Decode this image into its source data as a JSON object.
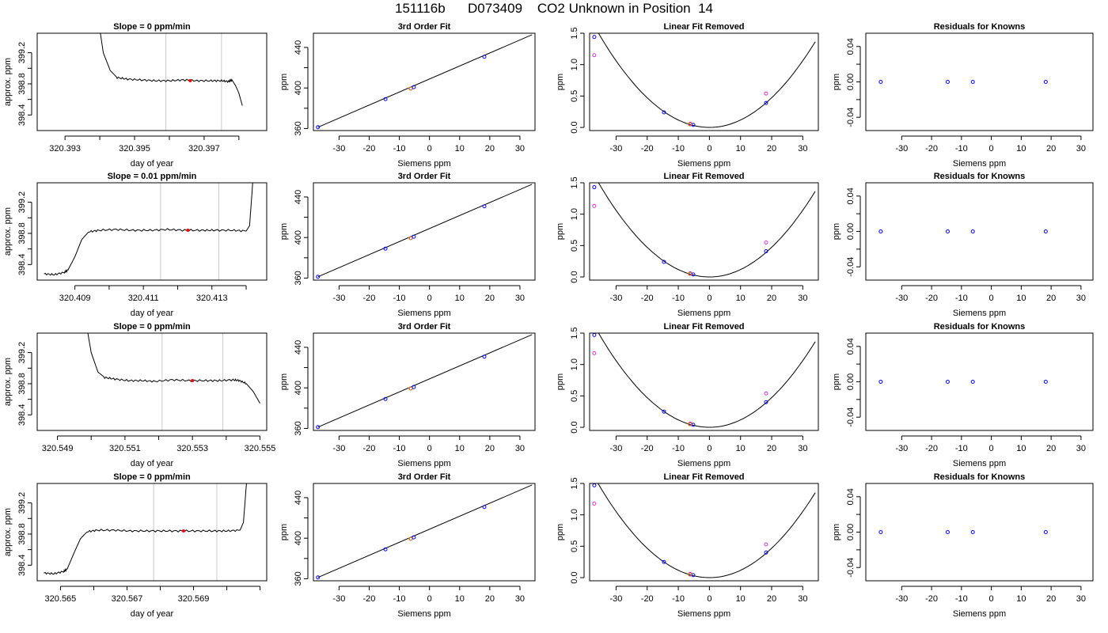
{
  "title": "151116b      D073409    CO2 Unknown in Position  14",
  "chart_data": [
    {
      "type": "line",
      "title": "Slope =  0  ppm/min",
      "xlabel": "day of year",
      "ylabel": "approx. ppm",
      "xlim": [
        320.3922,
        320.3988
      ],
      "ylim": [
        398.2,
        399.45
      ],
      "xticks": [
        320.393,
        320.394,
        320.395,
        320.396,
        320.397,
        320.398
      ],
      "xtick_labels": [
        "320.393",
        "",
        "320.395",
        "",
        "320.397",
        ""
      ],
      "yticks": [
        398.4,
        398.6,
        398.8,
        399.0,
        399.2
      ],
      "ytick_labels": [
        "398.4",
        "",
        "398.8",
        "",
        "399.2"
      ],
      "vlines": [
        320.3959,
        320.3975
      ],
      "x": [
        320.3939,
        320.3941,
        320.3943,
        320.3945,
        320.3948,
        320.3952,
        320.3956,
        320.396,
        320.3964,
        320.3968,
        320.3972,
        320.3975,
        320.3977,
        320.3978,
        320.3979,
        320.398,
        320.3981
      ],
      "y": [
        399.8,
        399.2,
        398.97,
        398.88,
        398.86,
        398.85,
        398.84,
        398.84,
        398.85,
        398.84,
        398.84,
        398.84,
        398.83,
        398.85,
        398.78,
        398.68,
        398.52
      ],
      "marker": {
        "x": 320.3966,
        "y": 398.84
      }
    },
    {
      "type": "scatter",
      "title": "3rd Order Fit",
      "xlabel": "Siemens ppm",
      "ylabel": "ppm",
      "xlim": [
        -38.5,
        35
      ],
      "ylim": [
        358,
        454
      ],
      "xticks": [
        -30,
        -20,
        -10,
        0,
        10,
        20,
        30
      ],
      "xtick_labels": [
        "-30",
        "-20",
        "-10",
        "0",
        "10",
        "20",
        "30"
      ],
      "yticks": [
        360,
        380,
        400,
        420,
        440
      ],
      "ytick_labels": [
        "360",
        "",
        "400",
        "",
        "440"
      ],
      "line": {
        "x": [
          -37,
          34
        ],
        "y": [
          361.3,
          452.5
        ]
      },
      "x": [
        -37,
        -14.6,
        -6.2,
        -5.2,
        18.2
      ],
      "y": [
        361.3,
        389,
        399.5,
        400.8,
        430.8
      ],
      "marker_points": [
        {
          "x": -6.3,
          "y": 399.4
        }
      ]
    },
    {
      "type": "scatter",
      "title": "Linear Fit Removed",
      "xlabel": "Siemens ppm",
      "ylabel": "ppm",
      "xlim": [
        -38.5,
        35
      ],
      "ylim": [
        -0.05,
        1.5
      ],
      "xticks": [
        -30,
        -20,
        -10,
        0,
        10,
        20,
        30
      ],
      "xtick_labels": [
        "-30",
        "-20",
        "-10",
        "0",
        "10",
        "20",
        "30"
      ],
      "yticks": [
        0,
        0.5,
        1.0,
        1.5
      ],
      "ytick_labels": [
        "0.0",
        "0.5",
        "1.0",
        "1.5"
      ],
      "curve": {
        "a": 0.00118,
        "h": 0,
        "k": 0,
        "xmin": -37,
        "xmax": 34
      },
      "x": [
        -37,
        -14.6,
        -6.2,
        -5.2,
        18.2
      ],
      "y": [
        1.44,
        0.24,
        0.05,
        0.04,
        0.39
      ],
      "magenta": {
        "x": [
          -37,
          -6.2,
          18.2
        ],
        "y": [
          1.15,
          0.06,
          0.54
        ]
      },
      "marker_points": [
        {
          "x": -6.3,
          "y": 0.05
        }
      ]
    },
    {
      "type": "scatter",
      "title": "Residuals for Knowns",
      "xlabel": "Siemens ppm",
      "ylabel": "ppm",
      "xlim": [
        -42,
        34
      ],
      "ylim": [
        -0.055,
        0.055
      ],
      "xticks": [
        -30,
        -20,
        -10,
        0,
        10,
        20,
        30
      ],
      "xtick_labels": [
        "-30",
        "-20",
        "-10",
        "0",
        "10",
        "20",
        "30"
      ],
      "yticks": [
        -0.04,
        -0.02,
        0,
        0.02,
        0.04
      ],
      "ytick_labels": [
        "-0.04",
        "",
        "0.00",
        "",
        "0.04"
      ],
      "x": [
        -37,
        -14.6,
        -6.2,
        18.2
      ],
      "y": [
        0,
        0,
        0,
        0
      ]
    },
    {
      "type": "line",
      "title": "Slope =  0.01  ppm/min",
      "xlabel": "day of year",
      "ylabel": "approx. ppm",
      "xlim": [
        320.4079,
        320.4146
      ],
      "ylim": [
        398.2,
        399.45
      ],
      "xticks": [
        320.409,
        320.41,
        320.411,
        320.412,
        320.413,
        320.414
      ],
      "xtick_labels": [
        "320.409",
        "",
        "320.411",
        "",
        "320.413",
        ""
      ],
      "yticks": [
        398.4,
        398.6,
        398.8,
        399.0,
        399.2
      ],
      "ytick_labels": [
        "398.4",
        "",
        "398.8",
        "",
        "399.2"
      ],
      "vlines": [
        320.4115,
        320.4132
      ],
      "x": [
        320.4081,
        320.4084,
        320.4087,
        320.4088,
        320.409,
        320.4092,
        320.4094,
        320.4097,
        320.4102,
        320.4107,
        320.4112,
        320.4117,
        320.4122,
        320.4127,
        320.4131,
        320.4136,
        320.414,
        320.4141,
        320.4142
      ],
      "y": [
        398.28,
        398.27,
        398.3,
        398.33,
        398.5,
        398.72,
        398.82,
        398.84,
        398.85,
        398.84,
        398.84,
        398.85,
        398.84,
        398.84,
        398.84,
        398.84,
        398.83,
        398.9,
        399.5
      ],
      "marker": {
        "x": 320.4123,
        "y": 398.84
      }
    },
    {
      "type": "scatter",
      "title": "3rd Order Fit",
      "xlabel": "Siemens ppm",
      "ylabel": "ppm",
      "xlim": [
        -38.5,
        35
      ],
      "ylim": [
        358,
        454
      ],
      "xticks": [
        -30,
        -20,
        -10,
        0,
        10,
        20,
        30
      ],
      "xtick_labels": [
        "-30",
        "-20",
        "-10",
        "0",
        "10",
        "20",
        "30"
      ],
      "yticks": [
        360,
        380,
        400,
        420,
        440
      ],
      "ytick_labels": [
        "360",
        "",
        "400",
        "",
        "440"
      ],
      "line": {
        "x": [
          -37,
          34
        ],
        "y": [
          361.3,
          452.5
        ]
      },
      "x": [
        -37,
        -14.6,
        -6.2,
        -5.2,
        18.2
      ],
      "y": [
        361.3,
        389,
        399.5,
        400.8,
        430.8
      ],
      "marker_points": [
        {
          "x": -6.3,
          "y": 399.4
        }
      ]
    },
    {
      "type": "scatter",
      "title": "Linear Fit Removed",
      "xlabel": "Siemens ppm",
      "ylabel": "ppm",
      "xlim": [
        -38.5,
        35
      ],
      "ylim": [
        -0.05,
        1.5
      ],
      "xticks": [
        -30,
        -20,
        -10,
        0,
        10,
        20,
        30
      ],
      "xtick_labels": [
        "-30",
        "-20",
        "-10",
        "0",
        "10",
        "20",
        "30"
      ],
      "yticks": [
        0,
        0.5,
        1.0,
        1.5
      ],
      "ytick_labels": [
        "0.0",
        "0.5",
        "1.0",
        "1.5"
      ],
      "curve": {
        "a": 0.00118,
        "h": 0,
        "k": 0,
        "xmin": -37,
        "xmax": 34
      },
      "x": [
        -37,
        -14.6,
        -6.2,
        -5.2,
        18.2
      ],
      "y": [
        1.43,
        0.24,
        0.05,
        0.04,
        0.41
      ],
      "magenta": {
        "x": [
          -37,
          -6.2,
          18.2
        ],
        "y": [
          1.13,
          0.06,
          0.55
        ]
      },
      "marker_points": [
        {
          "x": -6.3,
          "y": 0.05
        }
      ]
    },
    {
      "type": "scatter",
      "title": "Residuals for Knowns",
      "xlabel": "Siemens ppm",
      "ylabel": "ppm",
      "xlim": [
        -42,
        34
      ],
      "ylim": [
        -0.055,
        0.055
      ],
      "xticks": [
        -30,
        -20,
        -10,
        0,
        10,
        20,
        30
      ],
      "xtick_labels": [
        "-30",
        "-20",
        "-10",
        "0",
        "10",
        "20",
        "30"
      ],
      "yticks": [
        -0.04,
        -0.02,
        0,
        0.02,
        0.04
      ],
      "ytick_labels": [
        "-0.04",
        "",
        "0.00",
        "",
        "0.04"
      ],
      "x": [
        -37,
        -14.6,
        -6.2,
        18.2
      ],
      "y": [
        0,
        0,
        0,
        0
      ]
    },
    {
      "type": "line",
      "title": "Slope =  0  ppm/min",
      "xlabel": "day of year",
      "ylabel": "approx. ppm",
      "xlim": [
        320.5484,
        320.5552
      ],
      "ylim": [
        398.2,
        399.45
      ],
      "xticks": [
        320.549,
        320.55,
        320.551,
        320.552,
        320.553,
        320.554,
        320.555
      ],
      "xtick_labels": [
        "320.549",
        "",
        "320.551",
        "",
        "320.553",
        "",
        "320.555"
      ],
      "yticks": [
        398.4,
        398.6,
        398.8,
        399.0,
        399.2
      ],
      "ytick_labels": [
        "398.4",
        "",
        "398.8",
        "",
        "399.2"
      ],
      "vlines": [
        320.5521,
        320.5539
      ],
      "x": [
        320.5498,
        320.55,
        320.5502,
        320.5504,
        320.5507,
        320.5511,
        320.5515,
        320.5519,
        320.5524,
        320.5529,
        320.5534,
        320.5538,
        320.5542,
        320.5544,
        320.5546,
        320.5548,
        320.555
      ],
      "y": [
        399.7,
        399.2,
        398.95,
        398.88,
        398.86,
        398.84,
        398.84,
        398.83,
        398.85,
        398.84,
        398.84,
        398.84,
        398.85,
        398.84,
        398.8,
        398.7,
        398.55
      ],
      "marker": {
        "x": 320.553,
        "y": 398.84
      }
    },
    {
      "type": "scatter",
      "title": "3rd Order Fit",
      "xlabel": "Siemens ppm",
      "ylabel": "ppm",
      "xlim": [
        -38.5,
        35
      ],
      "ylim": [
        358,
        454
      ],
      "xticks": [
        -30,
        -20,
        -10,
        0,
        10,
        20,
        30
      ],
      "xtick_labels": [
        "-30",
        "-20",
        "-10",
        "0",
        "10",
        "20",
        "30"
      ],
      "yticks": [
        360,
        380,
        400,
        420,
        440
      ],
      "ytick_labels": [
        "360",
        "",
        "400",
        "",
        "440"
      ],
      "line": {
        "x": [
          -37,
          34
        ],
        "y": [
          361.3,
          452.5
        ]
      },
      "x": [
        -37,
        -14.6,
        -6.2,
        -5.2,
        18.2
      ],
      "y": [
        361.3,
        389,
        399.5,
        400.8,
        430.8
      ],
      "marker_points": [
        {
          "x": -6.3,
          "y": 399.4
        }
      ]
    },
    {
      "type": "scatter",
      "title": "Linear Fit Removed",
      "xlabel": "Siemens ppm",
      "ylabel": "ppm",
      "xlim": [
        -38.5,
        35
      ],
      "ylim": [
        -0.05,
        1.5
      ],
      "xticks": [
        -30,
        -20,
        -10,
        0,
        10,
        20,
        30
      ],
      "xtick_labels": [
        "-30",
        "-20",
        "-10",
        "0",
        "10",
        "20",
        "30"
      ],
      "yticks": [
        0,
        0.5,
        1.0,
        1.5
      ],
      "ytick_labels": [
        "0.0",
        "0.5",
        "1.0",
        "1.5"
      ],
      "curve": {
        "a": 0.00118,
        "h": 0,
        "k": 0,
        "xmin": -37,
        "xmax": 34
      },
      "x": [
        -37,
        -14.6,
        -6.2,
        -5.2,
        18.2
      ],
      "y": [
        1.47,
        0.25,
        0.05,
        0.04,
        0.4
      ],
      "magenta": {
        "x": [
          -37,
          -6.2,
          18.2
        ],
        "y": [
          1.18,
          0.06,
          0.54
        ]
      },
      "marker_points": [
        {
          "x": -6.3,
          "y": 0.05
        }
      ]
    },
    {
      "type": "scatter",
      "title": "Residuals for Knowns",
      "xlabel": "Siemens ppm",
      "ylabel": "ppm",
      "xlim": [
        -42,
        34
      ],
      "ylim": [
        -0.055,
        0.055
      ],
      "xticks": [
        -30,
        -20,
        -10,
        0,
        10,
        20,
        30
      ],
      "xtick_labels": [
        "-30",
        "-20",
        "-10",
        "0",
        "10",
        "20",
        "30"
      ],
      "yticks": [
        -0.04,
        -0.02,
        0,
        0.02,
        0.04
      ],
      "ytick_labels": [
        "-0.04",
        "",
        "0.00",
        "",
        "0.04"
      ],
      "x": [
        -37,
        -14.6,
        -6.2,
        18.2
      ],
      "y": [
        0,
        0,
        0,
        0
      ]
    },
    {
      "type": "line",
      "title": "Slope =  0  ppm/min",
      "xlabel": "day of year",
      "ylabel": "approx. ppm",
      "xlim": [
        320.5643,
        320.5712
      ],
      "ylim": [
        398.2,
        399.45
      ],
      "xticks": [
        320.565,
        320.566,
        320.567,
        320.568,
        320.569,
        320.57,
        320.571
      ],
      "xtick_labels": [
        "320.565",
        "",
        "320.567",
        "",
        "320.569",
        "",
        ""
      ],
      "yticks": [
        398.4,
        398.6,
        398.8,
        399.0,
        399.2
      ],
      "ytick_labels": [
        "398.4",
        "",
        "398.8",
        "",
        "399.2"
      ],
      "vlines": [
        320.5678,
        320.5697
      ],
      "x": [
        320.5645,
        320.5648,
        320.5651,
        320.5652,
        320.5654,
        320.5656,
        320.5658,
        320.5661,
        320.5666,
        320.5671,
        320.5676,
        320.5681,
        320.5686,
        320.5691,
        320.5696,
        320.57,
        320.5704,
        320.5705,
        320.5706
      ],
      "y": [
        398.3,
        398.29,
        398.32,
        398.35,
        398.55,
        398.74,
        398.83,
        398.85,
        398.85,
        398.84,
        398.84,
        398.84,
        398.84,
        398.84,
        398.84,
        398.84,
        398.85,
        398.95,
        399.5
      ],
      "marker": {
        "x": 320.5687,
        "y": 398.84
      }
    },
    {
      "type": "scatter",
      "title": "3rd Order Fit",
      "xlabel": "Siemens ppm",
      "ylabel": "ppm",
      "xlim": [
        -38.5,
        35
      ],
      "ylim": [
        358,
        454
      ],
      "xticks": [
        -30,
        -20,
        -10,
        0,
        10,
        20,
        30
      ],
      "xtick_labels": [
        "-30",
        "-20",
        "-10",
        "0",
        "10",
        "20",
        "30"
      ],
      "yticks": [
        360,
        380,
        400,
        420,
        440
      ],
      "ytick_labels": [
        "360",
        "",
        "400",
        "",
        "440"
      ],
      "line": {
        "x": [
          -37,
          34
        ],
        "y": [
          361.3,
          452.5
        ]
      },
      "x": [
        -37,
        -14.6,
        -6.2,
        -5.2,
        18.2
      ],
      "y": [
        361.3,
        389,
        399.5,
        400.8,
        430.8
      ],
      "marker_points": [
        {
          "x": -6.3,
          "y": 399.4
        }
      ]
    },
    {
      "type": "scatter",
      "title": "Linear Fit Removed",
      "xlabel": "Siemens ppm",
      "ylabel": "ppm",
      "xlim": [
        -38.5,
        35
      ],
      "ylim": [
        -0.05,
        1.5
      ],
      "xticks": [
        -30,
        -20,
        -10,
        0,
        10,
        20,
        30
      ],
      "xtick_labels": [
        "-30",
        "-20",
        "-10",
        "0",
        "10",
        "20",
        "30"
      ],
      "yticks": [
        0,
        0.5,
        1.0,
        1.5
      ],
      "ytick_labels": [
        "0.0",
        "0.5",
        "1.0",
        "1.5"
      ],
      "curve": {
        "a": 0.00117,
        "h": 0,
        "k": 0,
        "xmin": -37,
        "xmax": 34
      },
      "x": [
        -37,
        -14.6,
        -6.2,
        -5.2,
        18.2
      ],
      "y": [
        1.47,
        0.25,
        0.05,
        0.04,
        0.4
      ],
      "magenta": {
        "x": [
          -37,
          -6.2,
          18.2
        ],
        "y": [
          1.18,
          0.06,
          0.53
        ]
      },
      "marker_points": [
        {
          "x": -6.3,
          "y": 0.05
        }
      ]
    },
    {
      "type": "scatter",
      "title": "Residuals for Knowns",
      "xlabel": "Siemens ppm",
      "ylabel": "ppm",
      "xlim": [
        -42,
        34
      ],
      "ylim": [
        -0.055,
        0.055
      ],
      "xticks": [
        -30,
        -20,
        -10,
        0,
        10,
        20,
        30
      ],
      "xtick_labels": [
        "-30",
        "-20",
        "-10",
        "0",
        "10",
        "20",
        "30"
      ],
      "yticks": [
        -0.04,
        -0.02,
        0,
        0.02,
        0.04
      ],
      "ytick_labels": [
        "-0.04",
        "",
        "0.00",
        "",
        "0.04"
      ],
      "x": [
        -37,
        -14.6,
        -6.2,
        18.2
      ],
      "y": [
        0,
        0,
        0,
        0
      ]
    }
  ],
  "colors": {
    "trace": "#000000",
    "known_point": "#0000ff",
    "unknown_point": "#ff0000",
    "unknown_point2": "#ff8c00",
    "raw_point": "#cc00cc",
    "vline": "#c8c8c8",
    "axis": "#000000"
  }
}
